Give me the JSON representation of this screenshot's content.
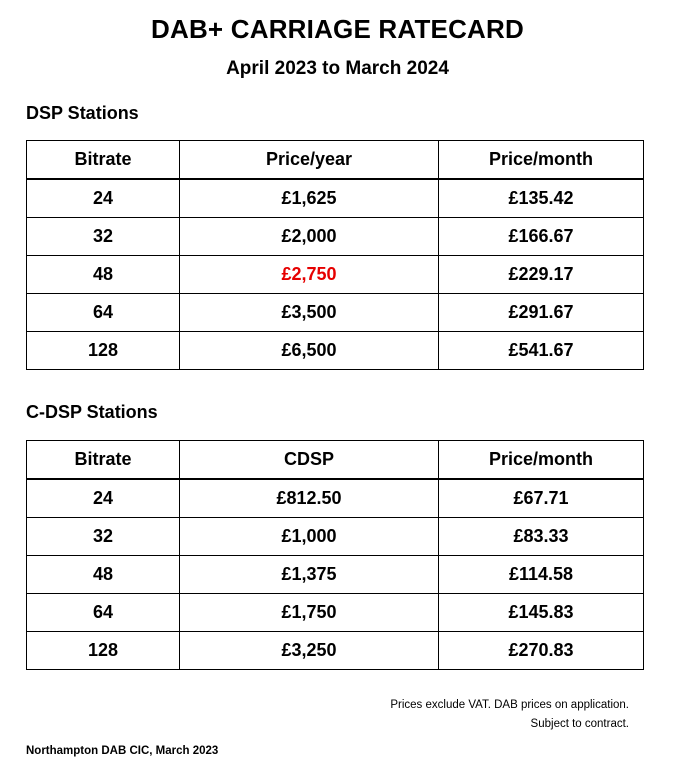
{
  "title": "DAB+ CARRIAGE RATECARD",
  "subtitle": "April 2023 to March 2024",
  "highlight_color": "#e60000",
  "dsp": {
    "label": "DSP Stations",
    "headers": [
      "Bitrate",
      "Price/year",
      "Price/month"
    ],
    "rows": [
      [
        "24",
        "£1,625",
        "£135.42"
      ],
      [
        "32",
        "£2,000",
        "£166.67"
      ],
      [
        "48",
        "£2,750",
        "£229.17"
      ],
      [
        "64",
        "£3,500",
        "£291.67"
      ],
      [
        "128",
        "£6,500",
        "£541.67"
      ]
    ]
  },
  "cdsp": {
    "label": "C-DSP Stations",
    "headers": [
      "Bitrate",
      "CDSP",
      "Price/month"
    ],
    "rows": [
      [
        "24",
        "£812.50",
        "£67.71"
      ],
      [
        "32",
        "£1,000",
        "£83.33"
      ],
      [
        "48",
        "£1,375",
        "£114.58"
      ],
      [
        "64",
        "£1,750",
        "£145.83"
      ],
      [
        "128",
        "£3,250",
        "£270.83"
      ]
    ]
  },
  "notes": {
    "line1": "Prices exclude VAT.  DAB prices on application.",
    "line2": "Subject to contract."
  },
  "footer": "Northampton DAB CIC, March 2023"
}
